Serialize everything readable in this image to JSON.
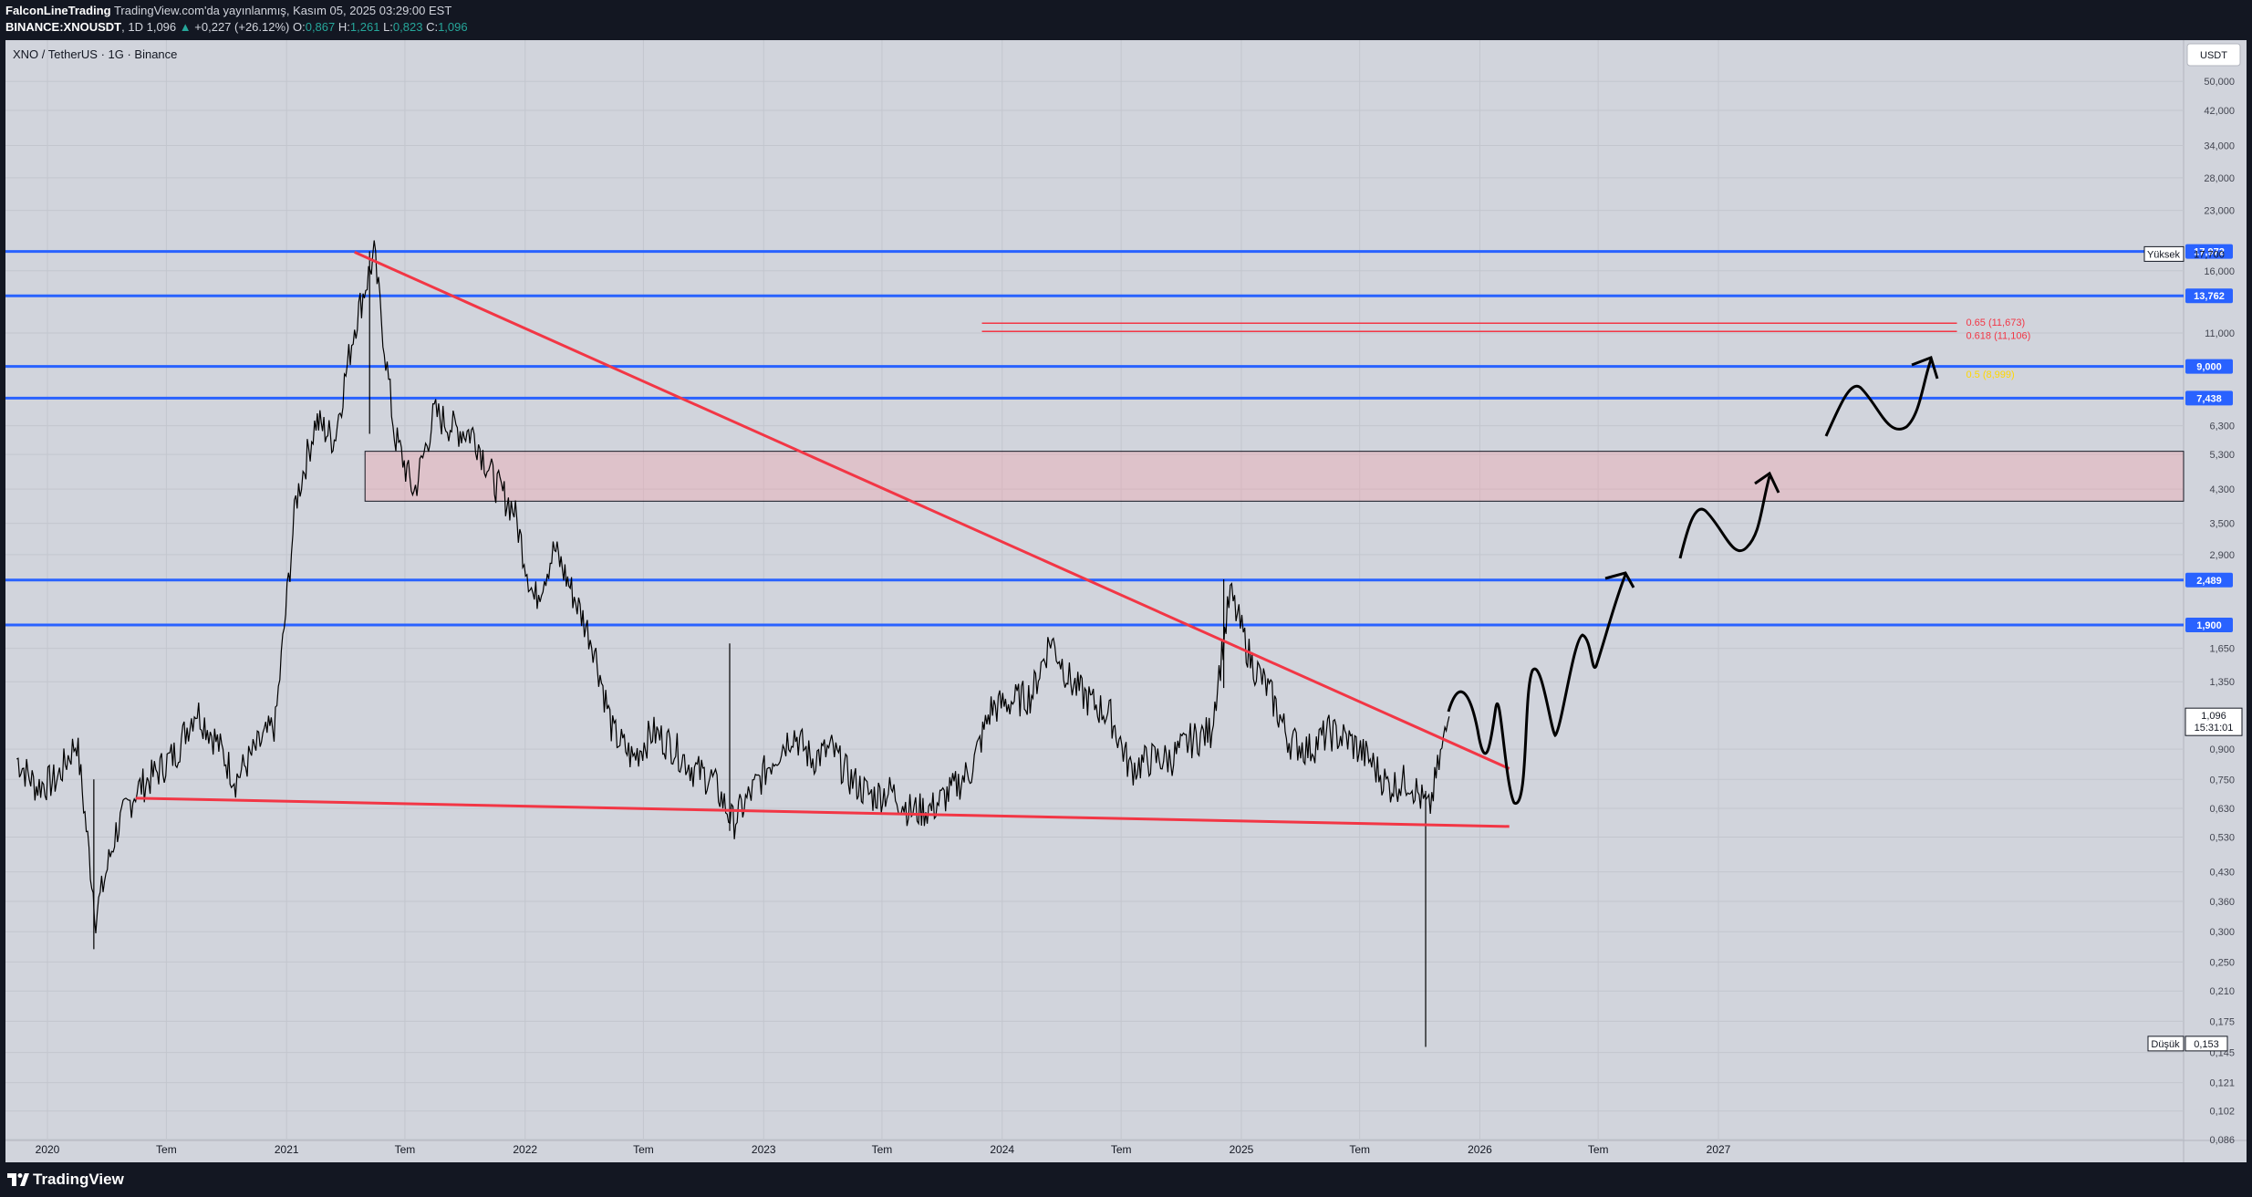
{
  "header": {
    "author": "FalconLineTrading",
    "published": "TradingView.com'da yayınlanmış, Kasım 05, 2025 03:29:00 EST",
    "symbol_full": "BINANCE:XNOUSDT",
    "interval": "1D",
    "price": "1,096",
    "change": "+0,227 (+26.12%)",
    "open_label": "O:",
    "open": "0,867",
    "high_label": "H:",
    "high": "1,261",
    "low_label": "L:",
    "low": "0,823",
    "close_label": "C:",
    "close": "1,096"
  },
  "chart_title": "XNO / TetherUS · 1G · Binance",
  "footer": {
    "brand": "TradingView"
  },
  "colors": {
    "background": "#d1d4dc",
    "frame": "#131722",
    "level_line": "#2962ff",
    "trend_line": "#f23645",
    "zone_fill": "#f7a1a9",
    "candles": "#000000",
    "fib_text": "#f23645",
    "yellow_text": "#ffd700"
  },
  "chart_data": {
    "type": "line",
    "title": "XNO / TetherUS · 1G · Binance",
    "y_scale": "log",
    "y_unit": "USDT",
    "y_ticks": [
      "50,000",
      "42,000",
      "34,000",
      "28,000",
      "23,000",
      "16,000",
      "11,000",
      "6,300",
      "5,300",
      "4,300",
      "3,500",
      "2,900",
      "1,650",
      "1,350",
      "0,900",
      "0,750",
      "0,630",
      "0,530",
      "0,430",
      "0,360",
      "0,300",
      "0,250",
      "0,210",
      "0,175",
      "0,145",
      "0,121",
      "0,102",
      "0,086"
    ],
    "x_ticks": [
      "2020",
      "Tem",
      "2021",
      "Tem",
      "2022",
      "Tem",
      "2023",
      "Tem",
      "2024",
      "Tem",
      "2025",
      "Tem",
      "2026",
      "Tem",
      "2027"
    ],
    "price_series": {
      "name": "XNOUSDT",
      "points": [
        [
          "2019-11",
          0.85
        ],
        [
          "2019-12",
          0.72
        ],
        [
          "2020-01",
          0.75
        ],
        [
          "2020-02",
          0.95
        ],
        [
          "2020-03",
          0.33
        ],
        [
          "2020-04",
          0.55
        ],
        [
          "2020-05",
          0.7
        ],
        [
          "2020-06",
          0.78
        ],
        [
          "2020-07",
          0.88
        ],
        [
          "2020-08",
          1.15
        ],
        [
          "2020-09",
          0.95
        ],
        [
          "2020-10",
          0.75
        ],
        [
          "2020-11",
          0.9
        ],
        [
          "2020-12",
          1.05
        ],
        [
          "2021-01",
          4.0
        ],
        [
          "2021-02",
          6.5
        ],
        [
          "2021-03",
          5.8
        ],
        [
          "2021-04",
          11.5
        ],
        [
          "2021-05",
          17.7
        ],
        [
          "2021-06",
          6.0
        ],
        [
          "2021-07",
          4.2
        ],
        [
          "2021-08",
          6.8
        ],
        [
          "2021-09",
          6.2
        ],
        [
          "2021-10",
          6.0
        ],
        [
          "2021-11",
          4.5
        ],
        [
          "2021-12",
          3.8
        ],
        [
          "2022-01",
          2.2
        ],
        [
          "2022-02",
          3.0
        ],
        [
          "2022-03",
          2.3
        ],
        [
          "2022-04",
          1.7
        ],
        [
          "2022-05",
          1.0
        ],
        [
          "2022-06",
          0.85
        ],
        [
          "2022-07",
          1.0
        ],
        [
          "2022-08",
          0.92
        ],
        [
          "2022-09",
          0.8
        ],
        [
          "2022-10",
          0.75
        ],
        [
          "2022-11",
          0.58
        ],
        [
          "2022-12",
          0.7
        ],
        [
          "2023-01",
          0.85
        ],
        [
          "2023-02",
          1.0
        ],
        [
          "2023-03",
          0.85
        ],
        [
          "2023-04",
          0.9
        ],
        [
          "2023-05",
          0.75
        ],
        [
          "2023-06",
          0.68
        ],
        [
          "2023-07",
          0.7
        ],
        [
          "2023-08",
          0.62
        ],
        [
          "2023-09",
          0.63
        ],
        [
          "2023-10",
          0.7
        ],
        [
          "2023-11",
          0.8
        ],
        [
          "2023-12",
          1.15
        ],
        [
          "2024-01",
          1.2
        ],
        [
          "2024-02",
          1.25
        ],
        [
          "2024-03",
          1.75
        ],
        [
          "2024-04",
          1.35
        ],
        [
          "2024-05",
          1.2
        ],
        [
          "2024-06",
          1.1
        ],
        [
          "2024-07",
          0.8
        ],
        [
          "2024-08",
          0.85
        ],
        [
          "2024-09",
          0.85
        ],
        [
          "2024-10",
          0.95
        ],
        [
          "2024-11",
          1.0
        ],
        [
          "2024-12",
          2.3
        ],
        [
          "2025-01",
          1.55
        ],
        [
          "2025-02",
          1.25
        ],
        [
          "2025-03",
          0.95
        ],
        [
          "2025-04",
          0.9
        ],
        [
          "2025-05",
          1.0
        ],
        [
          "2025-06",
          0.95
        ],
        [
          "2025-07",
          0.85
        ],
        [
          "2025-08",
          0.72
        ],
        [
          "2025-09",
          0.75
        ],
        [
          "2025-10",
          0.62
        ],
        [
          "2025-11",
          1.096
        ]
      ]
    },
    "horizontal_levels": [
      17.972,
      13.762,
      9.0,
      7.438,
      2.489,
      1.9
    ],
    "level_labels": [
      "17,972",
      "13,762",
      "9,000",
      "7,438",
      "2,489",
      "1,900"
    ],
    "current_price_label": "1,096",
    "countdown": "15:31:01",
    "high_marker": {
      "label": "Yüksek",
      "value": "17,700"
    },
    "low_marker": {
      "label": "Düşük",
      "value": "0,153"
    },
    "fib_labels": [
      "0.65 (11,673)",
      "0.618 (11,106)"
    ],
    "yellow_label": "0.5 (8,999)",
    "zone": {
      "low": 4.0,
      "high": 5.4
    },
    "trend_lines": [
      {
        "from": [
          "2021-04",
          17.9
        ],
        "to": [
          "2026-02",
          0.8
        ]
      },
      {
        "from": [
          "2020-05",
          0.67
        ],
        "to": [
          "2026-02",
          0.565
        ]
      }
    ],
    "currency_badge": "USDT"
  }
}
